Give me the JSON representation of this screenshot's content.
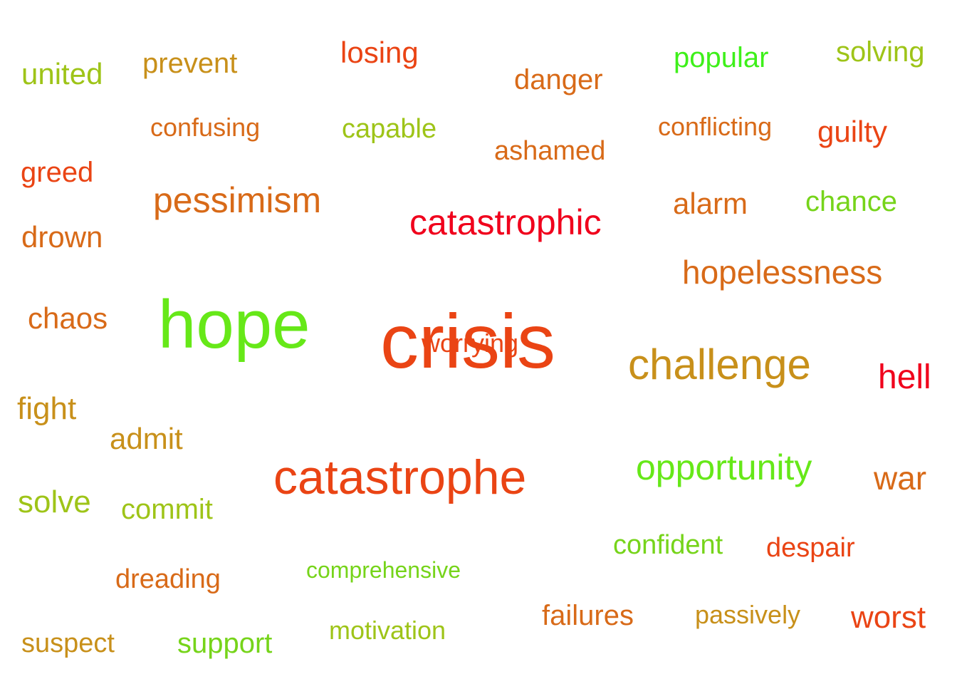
{
  "palette": {
    "bright_red": "#f0001c",
    "red_orange": "#ea4414",
    "orange": "#d86a18",
    "ochre": "#c8901a",
    "olive_green": "#9ec418",
    "light_green": "#76d41a",
    "bright_green": "#3ef01a"
  },
  "words": [
    {
      "text": "crisis",
      "color": "#ea4414",
      "weight": 10
    },
    {
      "text": "worrying",
      "color": "#ea4414",
      "weight": 3
    },
    {
      "text": "hope",
      "color": "#66e818",
      "weight": 10
    },
    {
      "text": "catastrophe",
      "color": "#ea4414",
      "weight": 7
    },
    {
      "text": "challenge",
      "color": "#c8901a",
      "weight": 6
    },
    {
      "text": "catastrophic",
      "color": "#f0001c",
      "weight": 5
    },
    {
      "text": "pessimism",
      "color": "#d86a18",
      "weight": 5
    },
    {
      "text": "opportunity",
      "color": "#66e818",
      "weight": 5
    },
    {
      "text": "hopelessness",
      "color": "#d86a18",
      "weight": 4
    },
    {
      "text": "hell",
      "color": "#f0001c",
      "weight": 4
    },
    {
      "text": "war",
      "color": "#d86a18",
      "weight": 4
    },
    {
      "text": "worst",
      "color": "#ea4414",
      "weight": 4
    },
    {
      "text": "losing",
      "color": "#ea4414",
      "weight": 3
    },
    {
      "text": "united",
      "color": "#9ec418",
      "weight": 3
    },
    {
      "text": "prevent",
      "color": "#c8901a",
      "weight": 3
    },
    {
      "text": "danger",
      "color": "#d86a18",
      "weight": 3
    },
    {
      "text": "popular",
      "color": "#3ef01a",
      "weight": 3
    },
    {
      "text": "solving",
      "color": "#9ec418",
      "weight": 3
    },
    {
      "text": "guilty",
      "color": "#ea4414",
      "weight": 3
    },
    {
      "text": "greed",
      "color": "#ea4414",
      "weight": 3
    },
    {
      "text": "alarm",
      "color": "#d86a18",
      "weight": 3
    },
    {
      "text": "drown",
      "color": "#d86a18",
      "weight": 3
    },
    {
      "text": "chaos",
      "color": "#d86a18",
      "weight": 3
    },
    {
      "text": "fight",
      "color": "#c8901a",
      "weight": 3
    },
    {
      "text": "admit",
      "color": "#c8901a",
      "weight": 3
    },
    {
      "text": "solve",
      "color": "#9ec418",
      "weight": 3
    },
    {
      "text": "failures",
      "color": "#d86a18",
      "weight": 3
    },
    {
      "text": "chance",
      "color": "#76d41a",
      "weight": 2
    },
    {
      "text": "confusing",
      "color": "#d86a18",
      "weight": 2
    },
    {
      "text": "capable",
      "color": "#9ec418",
      "weight": 2
    },
    {
      "text": "ashamed",
      "color": "#d86a18",
      "weight": 2
    },
    {
      "text": "conflicting",
      "color": "#d86a18",
      "weight": 2
    },
    {
      "text": "commit",
      "color": "#9ec418",
      "weight": 2
    },
    {
      "text": "confident",
      "color": "#76d41a",
      "weight": 2
    },
    {
      "text": "despair",
      "color": "#ea4414",
      "weight": 2
    },
    {
      "text": "dreading",
      "color": "#d86a18",
      "weight": 2
    },
    {
      "text": "comprehensive",
      "color": "#76d41a",
      "weight": 1
    },
    {
      "text": "passively",
      "color": "#c8901a",
      "weight": 2
    },
    {
      "text": "motivation",
      "color": "#9ec418",
      "weight": 2
    },
    {
      "text": "suspect",
      "color": "#c8901a",
      "weight": 2
    },
    {
      "text": "support",
      "color": "#76d41a",
      "weight": 2
    }
  ]
}
